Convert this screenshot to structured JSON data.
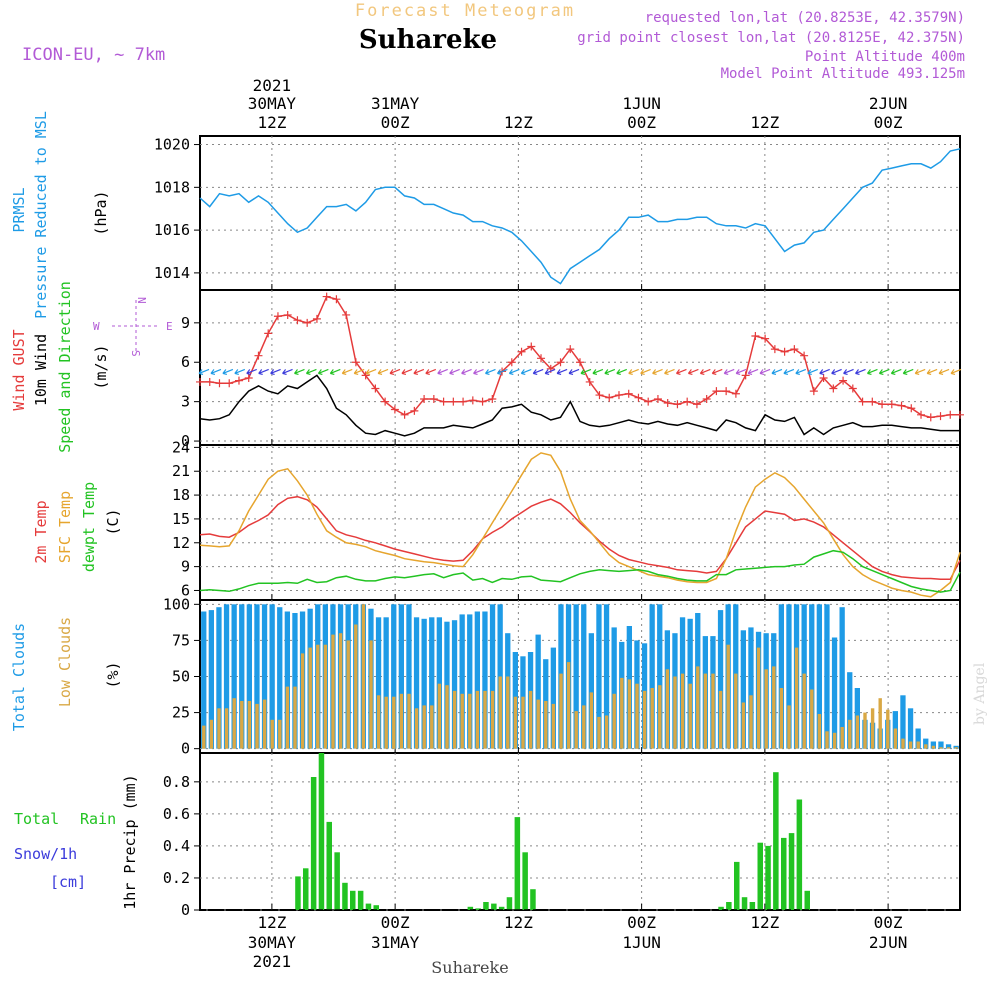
{
  "header": {
    "top_title": "Forecast Meteogram",
    "place": "Suhareke",
    "model": "ICON-EU, ~ 7km",
    "requested": "requested lon,lat (20.8253E, 42.3579N)",
    "grid_point": "grid point closest lon,lat (20.8125E, 42.375N)",
    "point_alt": "Point Altitude 400m",
    "model_alt": "Model Point Altitude 493.125m"
  },
  "time_axis": {
    "labels": [
      {
        "t": 12,
        "l1": "12Z",
        "l2": "30MAY",
        "l3": "2021"
      },
      {
        "t": 24,
        "l1": "00Z",
        "l2": "31MAY",
        "l3": ""
      },
      {
        "t": 36,
        "l1": "12Z",
        "l2": "",
        "l3": ""
      },
      {
        "t": 48,
        "l1": "00Z",
        "l2": "1JUN",
        "l3": ""
      },
      {
        "t": 60,
        "l1": "12Z",
        "l2": "",
        "l3": ""
      },
      {
        "t": 72,
        "l1": "00Z",
        "l2": "2JUN",
        "l3": ""
      }
    ],
    "bottom_caption": "Suhareke",
    "watermark": "by Angel"
  },
  "chart_data": [
    {
      "type": "line",
      "panel": "pressure",
      "ylabel_lines": [
        "PRMSL",
        "Pressure Reduced to MSL"
      ],
      "unit": "(hPa)",
      "ylim": [
        1013.2,
        1020.4
      ],
      "yticks": [
        1014,
        1016,
        1018,
        1020
      ],
      "series": [
        {
          "name": "PRMSL",
          "color": "#1e9be6",
          "values": [
            1017.5,
            1017.1,
            1017.7,
            1017.6,
            1017.7,
            1017.3,
            1017.6,
            1017.3,
            1016.8,
            1016.3,
            1015.9,
            1016.1,
            1016.6,
            1017.1,
            1017.1,
            1017.2,
            1016.9,
            1017.3,
            1017.9,
            1018.0,
            1018.0,
            1017.6,
            1017.5,
            1017.2,
            1017.2,
            1017.0,
            1016.8,
            1016.7,
            1016.4,
            1016.4,
            1016.2,
            1016.1,
            1015.9,
            1015.5,
            1015.0,
            1014.5,
            1013.8,
            1013.5,
            1014.2,
            1014.5,
            1014.8,
            1015.1,
            1015.6,
            1016.0,
            1016.6,
            1016.6,
            1016.7,
            1016.4,
            1016.4,
            1016.5,
            1016.5,
            1016.6,
            1016.6,
            1016.3,
            1016.2,
            1016.2,
            1016.1,
            1016.3,
            1016.2,
            1015.6,
            1015.0,
            1015.3,
            1015.4,
            1015.9,
            1016.0,
            1016.5,
            1017.0,
            1017.5,
            1018.0,
            1018.2,
            1018.8,
            1018.9,
            1019.0,
            1019.1,
            1019.1,
            1018.9,
            1019.2,
            1019.7,
            1019.8
          ]
        }
      ]
    },
    {
      "type": "line",
      "panel": "wind",
      "ylabel_lines": [
        "Wind GUST",
        "10m Wind",
        "Speed and Direction"
      ],
      "unit": "(m/s)",
      "compass": {
        "n": "N",
        "s": "S",
        "e": "E",
        "w": "W"
      },
      "ylim": [
        -0.3,
        11.5
      ],
      "yticks": [
        0,
        3,
        6,
        9
      ],
      "arrow_level": 5.3,
      "series": [
        {
          "name": "Wind GUST",
          "color": "#e53b3b",
          "values": [
            4.5,
            4.5,
            4.4,
            4.4,
            4.6,
            4.8,
            6.5,
            8.2,
            9.5,
            9.6,
            9.2,
            9.0,
            9.3,
            11.0,
            10.8,
            9.6,
            6.0,
            5.0,
            4.0,
            3.0,
            2.4,
            2.0,
            2.3,
            3.2,
            3.2,
            3.0,
            3.0,
            3.0,
            3.1,
            3.0,
            3.2,
            5.3,
            6.0,
            6.8,
            7.2,
            6.3,
            5.5,
            6.0,
            7.0,
            6.0,
            4.5,
            3.5,
            3.3,
            3.5,
            3.6,
            3.3,
            3.0,
            3.2,
            2.9,
            2.8,
            3.0,
            2.8,
            3.2,
            3.8,
            3.8,
            3.6,
            5.0,
            8.0,
            7.8,
            7.0,
            6.8,
            7.0,
            6.5,
            3.8,
            4.8,
            4.0,
            4.6,
            4.0,
            3.0,
            3.0,
            2.8,
            2.8,
            2.7,
            2.5,
            2.0,
            1.8,
            1.9,
            2.0,
            2.0
          ]
        },
        {
          "name": "10m Wind",
          "color": "#000000",
          "values": [
            1.7,
            1.6,
            1.7,
            2.0,
            3.0,
            3.8,
            4.2,
            3.8,
            3.6,
            4.2,
            4.0,
            4.5,
            5.0,
            4.0,
            2.5,
            2.0,
            1.2,
            0.6,
            0.5,
            0.8,
            0.6,
            0.4,
            0.6,
            1.0,
            1.0,
            1.0,
            1.2,
            1.1,
            1.0,
            1.3,
            1.6,
            2.5,
            2.6,
            2.8,
            2.2,
            2.0,
            1.6,
            1.8,
            3.0,
            1.5,
            1.2,
            1.1,
            1.2,
            1.4,
            1.6,
            1.4,
            1.3,
            1.5,
            1.3,
            1.2,
            1.4,
            1.2,
            1.0,
            0.8,
            1.6,
            1.4,
            1.0,
            0.8,
            2.0,
            1.6,
            1.5,
            1.8,
            0.5,
            1.0,
            0.5,
            1.0,
            1.2,
            1.4,
            1.1,
            1.1,
            1.2,
            1.2,
            1.1,
            1.0,
            1.0,
            0.9,
            0.8,
            0.8,
            0.8
          ]
        }
      ]
    },
    {
      "type": "line",
      "panel": "temperature",
      "ylabel_lines": [
        "2m Temp",
        "SFC Temp",
        "dewpt Temp"
      ],
      "unit": "(C)",
      "ylim": [
        4.8,
        24.3
      ],
      "yticks": [
        6,
        9,
        12,
        15,
        18,
        21,
        24
      ],
      "series": [
        {
          "name": "2m Temp",
          "color": "#e53b3b",
          "values": [
            13.0,
            13.1,
            12.8,
            12.7,
            13.3,
            14.2,
            14.8,
            15.5,
            16.8,
            17.6,
            17.8,
            17.4,
            16.5,
            15.0,
            13.5,
            13.0,
            12.7,
            12.3,
            12.0,
            11.6,
            11.2,
            10.9,
            10.6,
            10.3,
            10.0,
            9.8,
            9.7,
            9.8,
            11.0,
            12.5,
            13.3,
            14.0,
            15.0,
            15.8,
            16.6,
            17.1,
            17.5,
            16.9,
            15.8,
            14.5,
            13.4,
            12.2,
            11.2,
            10.4,
            9.9,
            9.6,
            9.3,
            9.1,
            8.9,
            8.6,
            8.5,
            8.4,
            8.2,
            8.4,
            10.0,
            12.0,
            14.0,
            15.0,
            16.0,
            15.8,
            15.6,
            14.8,
            15.0,
            14.6,
            14.0,
            13.0,
            12.0,
            11.0,
            10.0,
            9.0,
            8.4,
            8.0,
            7.7,
            7.6,
            7.5,
            7.5,
            7.4,
            7.4,
            9.8
          ]
        },
        {
          "name": "SFC Temp",
          "color": "#e6a52e",
          "values": [
            11.7,
            11.6,
            11.5,
            11.6,
            13.5,
            16.0,
            18.0,
            20.0,
            21.0,
            21.3,
            19.8,
            18.0,
            15.6,
            13.5,
            12.7,
            12.0,
            11.8,
            11.5,
            11.0,
            10.7,
            10.4,
            10.0,
            9.8,
            9.6,
            9.5,
            9.3,
            9.1,
            9.0,
            10.5,
            12.5,
            14.5,
            16.5,
            18.5,
            20.5,
            22.5,
            23.3,
            23.0,
            21.0,
            17.5,
            14.8,
            13.5,
            12.0,
            10.5,
            9.5,
            9.0,
            8.5,
            8.0,
            7.8,
            7.6,
            7.3,
            7.1,
            7.0,
            7.0,
            7.5,
            10.0,
            13.5,
            16.5,
            19.0,
            20.0,
            20.8,
            20.2,
            19.0,
            17.5,
            16.0,
            14.5,
            12.5,
            10.5,
            9.0,
            8.0,
            7.3,
            6.8,
            6.3,
            6.0,
            5.8,
            5.4,
            5.2,
            6.0,
            7.0,
            10.8
          ]
        },
        {
          "name": "dewpt Temp",
          "color": "#22c322",
          "values": [
            6.0,
            6.1,
            6.0,
            5.9,
            6.2,
            6.6,
            6.9,
            6.9,
            6.9,
            7.0,
            6.9,
            7.4,
            7.0,
            7.1,
            7.6,
            7.8,
            7.4,
            7.2,
            7.2,
            7.5,
            7.7,
            7.6,
            7.8,
            8.0,
            8.1,
            7.6,
            8.0,
            8.2,
            7.3,
            7.5,
            7.0,
            7.5,
            7.4,
            7.7,
            7.8,
            7.3,
            7.2,
            7.1,
            7.6,
            8.1,
            8.4,
            8.6,
            8.5,
            8.4,
            8.5,
            8.6,
            8.4,
            8.0,
            7.8,
            7.5,
            7.3,
            7.2,
            7.2,
            8.0,
            8.0,
            8.6,
            8.7,
            8.8,
            8.9,
            9.0,
            9.0,
            9.2,
            9.3,
            10.2,
            10.6,
            11.0,
            10.8,
            10.0,
            9.0,
            8.5,
            8.0,
            7.5,
            7.0,
            6.5,
            6.2,
            6.0,
            5.8,
            6.0,
            8.3
          ]
        }
      ]
    },
    {
      "type": "bar",
      "panel": "clouds",
      "ylabel_lines": [
        "Total Clouds",
        "Low Clouds"
      ],
      "unit": "(%)",
      "ylim": [
        -3,
        103
      ],
      "yticks": [
        0,
        25,
        50,
        75,
        100
      ],
      "series": [
        {
          "name": "Total Clouds",
          "color": "#1e9be6",
          "values": [
            95,
            96,
            98,
            100,
            100,
            100,
            100,
            100,
            100,
            100,
            98,
            95,
            94,
            95,
            97,
            100,
            100,
            100,
            100,
            100,
            100,
            100,
            97,
            91,
            91,
            100,
            100,
            100,
            91,
            90,
            91,
            91,
            88,
            89,
            93,
            93,
            95,
            95,
            100,
            100,
            80,
            67,
            64,
            67,
            79,
            62,
            70,
            100,
            100,
            100,
            100,
            80,
            100,
            100,
            84,
            74,
            85,
            75,
            73,
            100,
            100,
            82,
            80,
            91,
            90,
            94,
            78,
            78,
            96,
            100,
            100,
            82,
            84,
            81,
            80,
            80,
            100,
            100,
            100,
            100,
            100,
            100,
            100,
            77,
            98,
            53,
            42,
            20,
            18,
            14,
            20,
            26,
            37,
            28,
            14,
            7,
            5,
            5,
            3,
            2
          ]
        },
        {
          "name": "Low Clouds",
          "color": "#d9a845",
          "values": [
            16,
            20,
            28,
            28,
            35,
            33,
            33,
            31,
            34,
            20,
            20,
            43,
            43,
            66,
            70,
            72,
            72,
            79,
            80,
            75,
            86,
            100,
            75,
            37,
            36,
            36,
            38,
            38,
            28,
            30,
            30,
            45,
            44,
            40,
            38,
            38,
            40,
            40,
            40,
            50,
            50,
            36,
            36,
            40,
            34,
            33,
            31,
            52,
            60,
            26,
            30,
            39,
            22,
            23,
            38,
            49,
            48,
            45,
            40,
            42,
            44,
            55,
            50,
            52,
            45,
            57,
            52,
            52,
            40,
            72,
            52,
            32,
            37,
            70,
            55,
            57,
            42,
            30,
            70,
            52,
            41,
            24,
            12,
            11,
            15,
            20,
            23,
            25,
            28,
            35,
            27,
            14,
            7,
            5,
            5,
            3,
            2,
            1,
            1,
            1
          ]
        }
      ]
    },
    {
      "type": "bar",
      "panel": "precip",
      "ylabel_lines": [
        "Total",
        "Rain",
        "Snow/1h",
        "[cm]",
        "1hr Precip (mm)"
      ],
      "ylim": [
        0,
        0.98
      ],
      "yticks": [
        0,
        0.2,
        0.4,
        0.6,
        0.8
      ],
      "ytick_labels": [
        "0",
        "0.2",
        "0.4",
        "0.6",
        "0.8"
      ],
      "series": [
        {
          "name": "Total",
          "color": "#22c322",
          "values": [
            0,
            0,
            0,
            0,
            0,
            0,
            0,
            0,
            0,
            0,
            0,
            0,
            0.21,
            0.26,
            0.83,
            0.98,
            0.55,
            0.36,
            0.17,
            0.12,
            0.12,
            0.04,
            0.03,
            0,
            0,
            0,
            0,
            0,
            0,
            0,
            0,
            0,
            0,
            0,
            0.02,
            0.01,
            0.05,
            0.04,
            0.02,
            0.08,
            0.58,
            0.36,
            0.13,
            0,
            0,
            0,
            0,
            0,
            0,
            0,
            0,
            0,
            0,
            0,
            0,
            0,
            0,
            0,
            0,
            0,
            0,
            0,
            0,
            0,
            0,
            0,
            0.02,
            0.05,
            0.3,
            0.08,
            0.05,
            0.42,
            0.4,
            0.86,
            0.45,
            0.48,
            0.69,
            0.12,
            0,
            0,
            0,
            0,
            0,
            0,
            0,
            0,
            0,
            0,
            0,
            0,
            0,
            0,
            0,
            0,
            0,
            0,
            0
          ]
        }
      ]
    }
  ]
}
